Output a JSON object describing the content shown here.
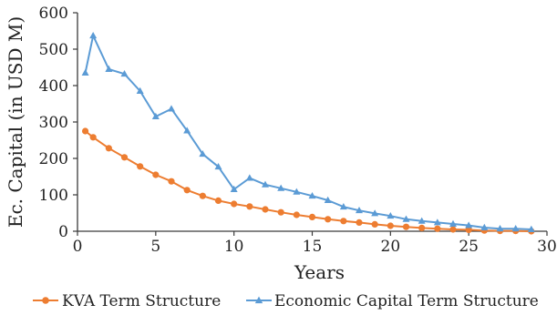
{
  "chart_data": {
    "type": "line",
    "xlabel": "Years",
    "ylabel": "Ec. Capital (in USD M)",
    "xlim": [
      0,
      30
    ],
    "ylim": [
      0,
      600
    ],
    "x_ticks": [
      0,
      5,
      10,
      15,
      20,
      25,
      30
    ],
    "y_ticks": [
      0,
      100,
      200,
      300,
      400,
      500,
      600
    ],
    "grid": false,
    "legend_position": "bottom",
    "series": [
      {
        "name": "KVA Term Structure",
        "color": "#ED7D31",
        "marker": "circle",
        "x": [
          0.5,
          1,
          2,
          3,
          4,
          5,
          6,
          7,
          8,
          9,
          10,
          11,
          12,
          13,
          14,
          15,
          16,
          17,
          18,
          19,
          20,
          21,
          22,
          23,
          24,
          25,
          26,
          27,
          28,
          29
        ],
        "values": [
          275,
          258,
          228,
          203,
          178,
          155,
          137,
          113,
          97,
          84,
          75,
          68,
          60,
          52,
          45,
          39,
          33,
          28,
          24,
          19,
          15,
          12,
          9,
          7,
          5,
          4,
          2,
          1,
          1,
          0
        ]
      },
      {
        "name": "Economic Capital Term Structure",
        "color": "#5B9BD5",
        "marker": "triangle",
        "x": [
          0.5,
          1,
          2,
          3,
          4,
          5,
          6,
          7,
          8,
          9,
          10,
          11,
          12,
          13,
          14,
          15,
          16,
          17,
          18,
          19,
          20,
          21,
          22,
          23,
          24,
          25,
          26,
          27,
          28,
          29
        ],
        "values": [
          435,
          537,
          445,
          432,
          385,
          315,
          336,
          276,
          212,
          177,
          115,
          146,
          128,
          118,
          108,
          97,
          85,
          67,
          57,
          49,
          42,
          33,
          28,
          24,
          20,
          16,
          10,
          7,
          7,
          5
        ]
      }
    ]
  }
}
